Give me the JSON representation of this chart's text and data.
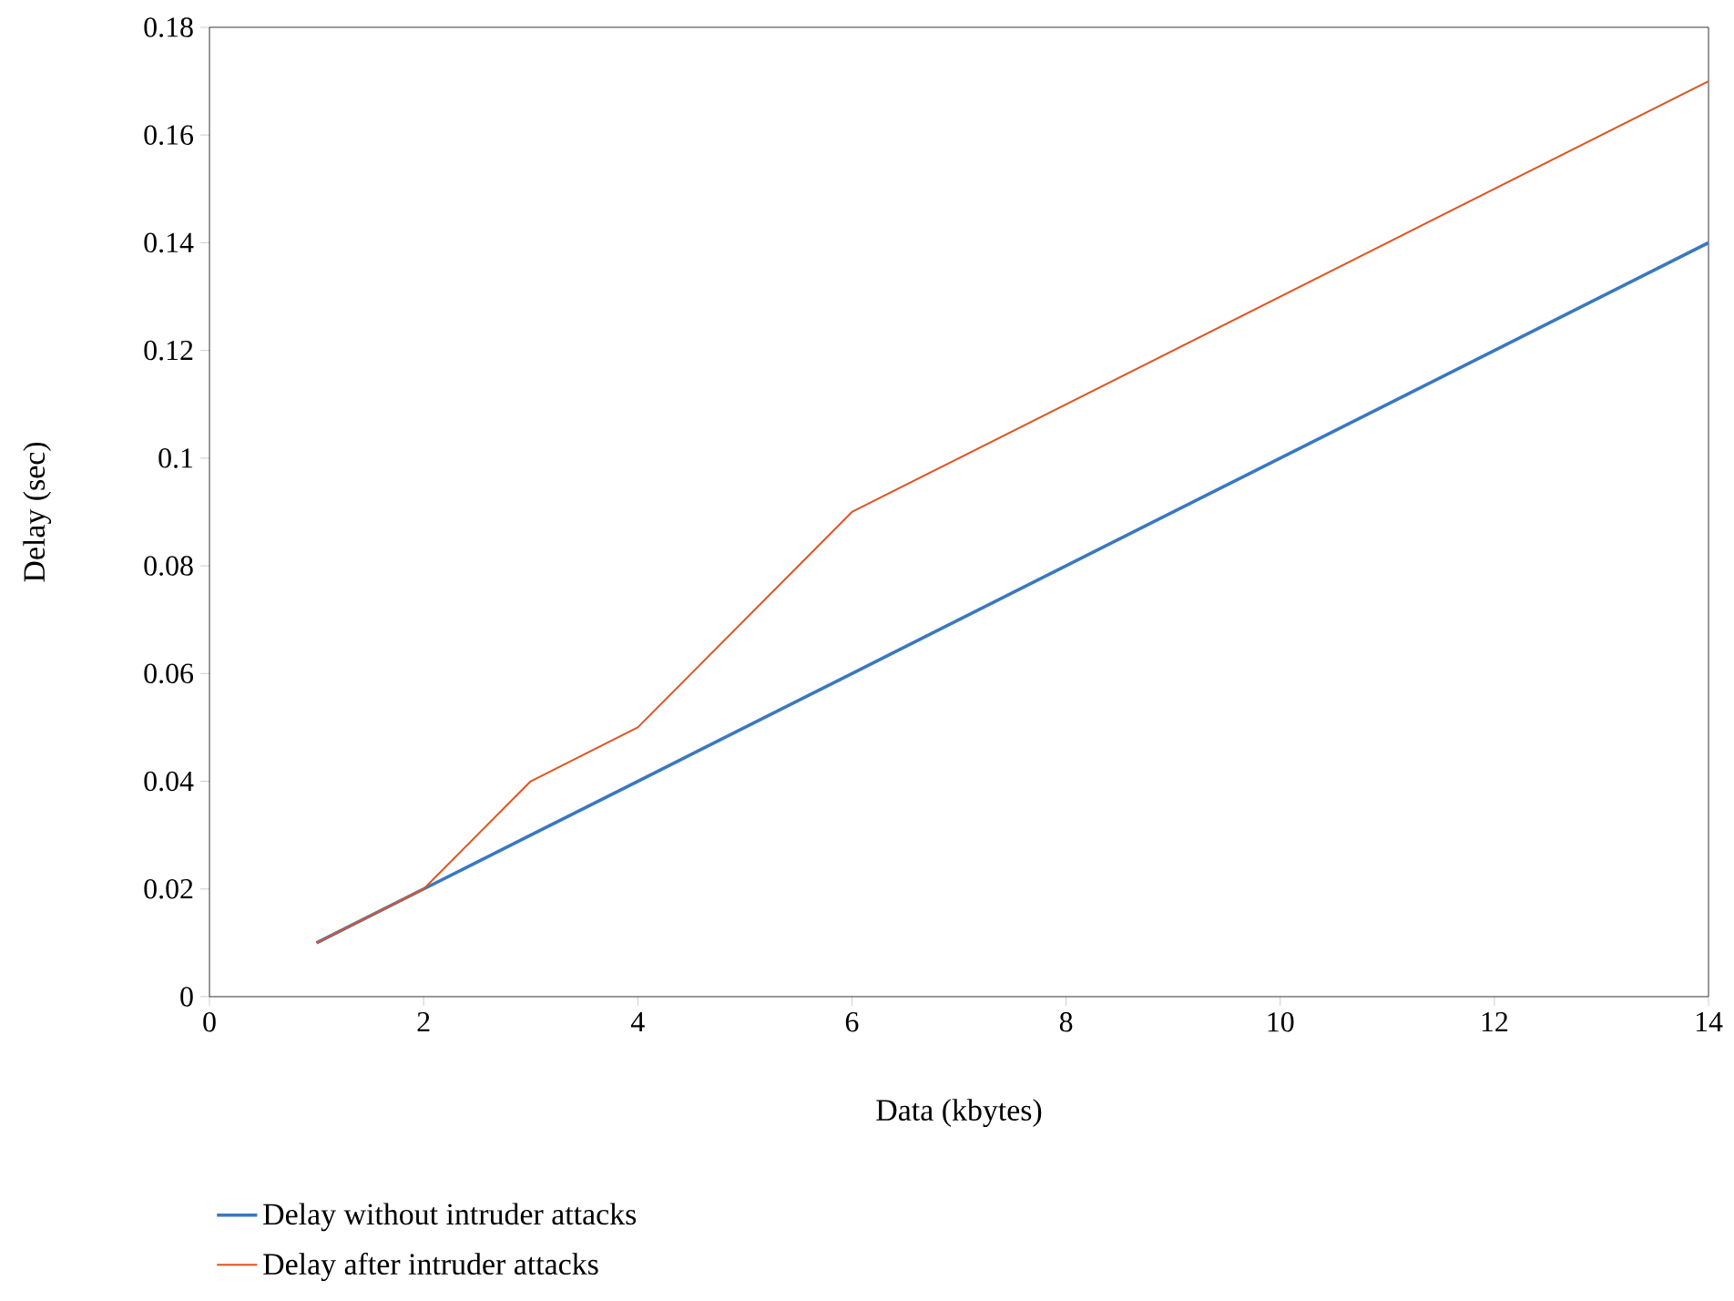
{
  "chart_data": {
    "type": "line",
    "xlabel": "Data (kbytes)",
    "ylabel": "Delay (sec)",
    "x": [
      1,
      2,
      3,
      4,
      6,
      14
    ],
    "series": [
      {
        "name": "Delay without intruder attacks",
        "color": "#3a78c0",
        "values": [
          0.01,
          0.02,
          0.03,
          0.04,
          0.06,
          0.14
        ]
      },
      {
        "name": "Delay after intruder attacks",
        "color": "#e0531f",
        "values": [
          0.01,
          0.02,
          0.04,
          0.05,
          0.09,
          0.17
        ]
      }
    ],
    "xlim": [
      0,
      14
    ],
    "ylim": [
      0,
      0.18
    ],
    "xticks": [
      0,
      2,
      4,
      6,
      8,
      10,
      12,
      14
    ],
    "yticks": [
      0,
      0.02,
      0.04,
      0.06,
      0.08,
      0.1,
      0.12,
      0.14,
      0.16,
      0.18
    ],
    "legend": "bottom",
    "grid": false,
    "marker": "none",
    "line_style": "solid"
  }
}
